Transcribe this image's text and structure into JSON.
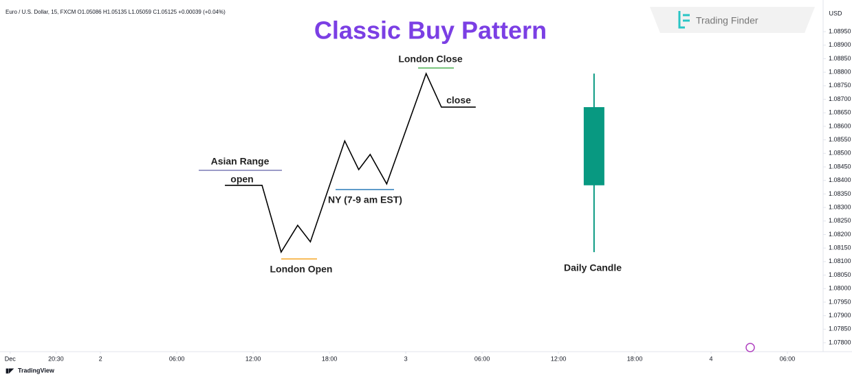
{
  "chart_data": {
    "type": "line",
    "title": "Classic Buy Pattern",
    "header": "Euro / U.S. Dollar, 15, FXCM O1.05086 H1.05135 L1.05059 C1.05125 +0.00039 (+0.04%)",
    "currency": "USD",
    "watermark": "Trading Finder",
    "footer": "TradingView",
    "annotations": [
      "Asian Range",
      "open",
      "London Open",
      "NY (7-9 am EST)",
      "London Close",
      "close",
      "Daily Candle"
    ],
    "series": [
      {
        "color": "#000000",
        "x": [
          9.78,
          12.7,
          14.2,
          15.5,
          16.5,
          19.2,
          20.3,
          21.2,
          22.5,
          25.6,
          26.8,
          29.5
        ],
        "values": [
          1.08382,
          1.08382,
          1.08135,
          1.08234,
          1.08173,
          1.08546,
          1.0844,
          1.08496,
          1.08387,
          1.08795,
          1.08671,
          1.08671
        ]
      }
    ],
    "candle": {
      "x": 38.8,
      "open": 1.08382,
      "high": 1.08795,
      "low": 1.08135,
      "close": 1.08671,
      "color": "#089981"
    },
    "xlim": [
      -7.9,
      56.7
    ],
    "xticks": [
      {
        "value": -7.1,
        "label": "Dec"
      },
      {
        "value": -3.5,
        "label": "20:30"
      },
      {
        "value": 0,
        "label": "2"
      },
      {
        "value": 6,
        "label": "06:00"
      },
      {
        "value": 12,
        "label": "12:00"
      },
      {
        "value": 18,
        "label": "18:00"
      },
      {
        "value": 24,
        "label": "3"
      },
      {
        "value": 30,
        "label": "06:00"
      },
      {
        "value": 36,
        "label": "12:00"
      },
      {
        "value": 42,
        "label": "18:00"
      },
      {
        "value": 48,
        "label": "4"
      },
      {
        "value": 54,
        "label": "06:00"
      }
    ],
    "ylim": [
      1.07767,
      1.09067
    ],
    "yticks": [
      {
        "value": 1.0895,
        "label": "1.08950"
      },
      {
        "value": 1.089,
        "label": "1.08900"
      },
      {
        "value": 1.0885,
        "label": "1.08850"
      },
      {
        "value": 1.088,
        "label": "1.08800"
      },
      {
        "value": 1.0875,
        "label": "1.08750"
      },
      {
        "value": 1.087,
        "label": "1.08700"
      },
      {
        "value": 1.0865,
        "label": "1.08650"
      },
      {
        "value": 1.086,
        "label": "1.08600"
      },
      {
        "value": 1.0855,
        "label": "1.08550"
      },
      {
        "value": 1.085,
        "label": "1.08500"
      },
      {
        "value": 1.0845,
        "label": "1.08450"
      },
      {
        "value": 1.084,
        "label": "1.08400"
      },
      {
        "value": 1.0835,
        "label": "1.08350"
      },
      {
        "value": 1.083,
        "label": "1.08300"
      },
      {
        "value": 1.0825,
        "label": "1.08250"
      },
      {
        "value": 1.082,
        "label": "1.08200"
      },
      {
        "value": 1.0815,
        "label": "1.08150"
      },
      {
        "value": 1.081,
        "label": "1.08100"
      },
      {
        "value": 1.0805,
        "label": "1.08050"
      },
      {
        "value": 1.08,
        "label": "1.08000"
      },
      {
        "value": 1.0795,
        "label": "1.07950"
      },
      {
        "value": 1.079,
        "label": "1.07900"
      },
      {
        "value": 1.0785,
        "label": "1.07850"
      },
      {
        "value": 1.078,
        "label": "1.07800"
      }
    ],
    "grid": false
  }
}
